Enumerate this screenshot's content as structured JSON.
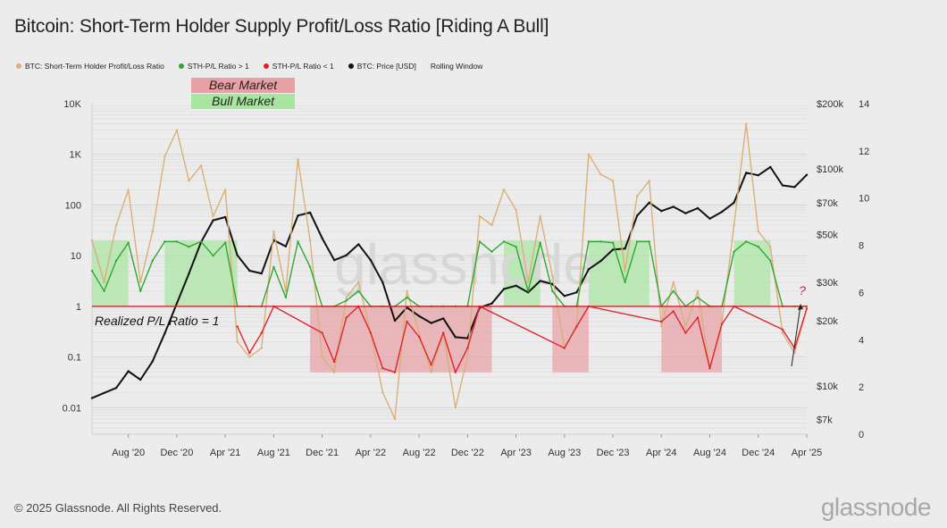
{
  "header": {
    "title": "Bitcoin: Short-Term Holder Supply Profit/Loss Ratio [Riding A Bull]"
  },
  "legend": [
    {
      "label": "BTC: Short-Term Holder Profit/Loss Ratio",
      "color": "#d9b07a",
      "dot": true
    },
    {
      "label": "STH-P/L Ratio > 1",
      "color": "#2fa82f",
      "dot": true
    },
    {
      "label": "STH-P/L Ratio < 1",
      "color": "#e0242f",
      "dot": true
    },
    {
      "label": "BTC: Price [USD]",
      "color": "#111111",
      "dot": true
    },
    {
      "label": "Rolling Window",
      "color": "",
      "dot": false
    }
  ],
  "footer": {
    "copyright": "© 2025 Glassnode. All Rights Reserved.",
    "brand": "glassnode"
  },
  "chart_data": {
    "type": "line",
    "watermark": "glassnode",
    "x_ticks": [
      "Aug '20",
      "Dec '20",
      "Apr '21",
      "Aug '21",
      "Dec '21",
      "Apr '22",
      "Aug '22",
      "Dec '22",
      "Apr '23",
      "Aug '23",
      "Dec '23",
      "Apr '24",
      "Aug '24",
      "Dec '24",
      "Apr '25"
    ],
    "x_range": [
      "2020-05",
      "2025-04"
    ],
    "y_left": {
      "scale": "log",
      "ticks": [
        "10K",
        "1K",
        "100",
        "10",
        "1",
        "0.1",
        "0.01"
      ],
      "range": [
        0.003,
        10000
      ]
    },
    "y_right_price": {
      "scale": "log",
      "ticks": [
        "$200k",
        "$100k",
        "$70k",
        "$50k",
        "$30k",
        "$20k",
        "$10k",
        "$7k"
      ],
      "range_usd": [
        6000,
        200000
      ]
    },
    "y_right_secondary": {
      "scale": "linear",
      "ticks": [
        "14",
        "12",
        "10",
        "8",
        "6",
        "4",
        "2",
        "0"
      ],
      "range": [
        0,
        14
      ]
    },
    "threshold": {
      "value": 1,
      "label": "Realized P/L Ratio = 1",
      "color": "#d0202a"
    },
    "regime_legend": [
      {
        "label": "Bear Market",
        "color": "#e8a0a4"
      },
      {
        "label": "Bull Market",
        "color": "#a8e6a0"
      }
    ],
    "bull_regions": [
      [
        "2020-05",
        "2020-08"
      ],
      [
        "2020-11",
        "2021-05"
      ],
      [
        "2023-03",
        "2023-06"
      ],
      [
        "2023-10",
        "2024-03"
      ],
      [
        "2024-10",
        "2025-01"
      ]
    ],
    "bear_regions": [
      [
        "2021-11",
        "2023-02"
      ],
      [
        "2023-07",
        "2023-10"
      ],
      [
        "2024-04",
        "2024-09"
      ]
    ],
    "annotation": {
      "label": "?",
      "color": "#d0206a"
    },
    "series": [
      {
        "name": "BTC: Price [USD]",
        "color": "#111111",
        "points": [
          [
            "2020-05",
            8800
          ],
          [
            "2020-06",
            9300
          ],
          [
            "2020-07",
            9800
          ],
          [
            "2020-08",
            11700
          ],
          [
            "2020-09",
            10700
          ],
          [
            "2020-10",
            13000
          ],
          [
            "2020-11",
            17500
          ],
          [
            "2020-12",
            24000
          ],
          [
            "2021-01",
            33000
          ],
          [
            "2021-02",
            46000
          ],
          [
            "2021-03",
            58000
          ],
          [
            "2021-04",
            60000
          ],
          [
            "2021-05",
            40000
          ],
          [
            "2021-06",
            34000
          ],
          [
            "2021-07",
            33000
          ],
          [
            "2021-08",
            47000
          ],
          [
            "2021-09",
            44000
          ],
          [
            "2021-10",
            61000
          ],
          [
            "2021-11",
            63000
          ],
          [
            "2021-12",
            48000
          ],
          [
            "2022-01",
            38000
          ],
          [
            "2022-02",
            40000
          ],
          [
            "2022-03",
            45000
          ],
          [
            "2022-04",
            38000
          ],
          [
            "2022-05",
            30000
          ],
          [
            "2022-06",
            20000
          ],
          [
            "2022-07",
            23000
          ],
          [
            "2022-08",
            21000
          ],
          [
            "2022-09",
            19500
          ],
          [
            "2022-10",
            20500
          ],
          [
            "2022-11",
            16800
          ],
          [
            "2022-12",
            16600
          ],
          [
            "2023-01",
            23000
          ],
          [
            "2023-02",
            24000
          ],
          [
            "2023-03",
            28000
          ],
          [
            "2023-04",
            29000
          ],
          [
            "2023-05",
            27000
          ],
          [
            "2023-06",
            30500
          ],
          [
            "2023-07",
            29500
          ],
          [
            "2023-08",
            26000
          ],
          [
            "2023-09",
            27000
          ],
          [
            "2023-10",
            34500
          ],
          [
            "2023-11",
            37700
          ],
          [
            "2023-12",
            42500
          ],
          [
            "2024-01",
            43000
          ],
          [
            "2024-02",
            61000
          ],
          [
            "2024-03",
            70000
          ],
          [
            "2024-04",
            64000
          ],
          [
            "2024-05",
            67000
          ],
          [
            "2024-06",
            62500
          ],
          [
            "2024-07",
            66000
          ],
          [
            "2024-08",
            59000
          ],
          [
            "2024-09",
            63500
          ],
          [
            "2024-10",
            70000
          ],
          [
            "2024-11",
            96000
          ],
          [
            "2024-12",
            93500
          ],
          [
            "2025-01",
            102000
          ],
          [
            "2025-02",
            84000
          ],
          [
            "2025-03",
            82500
          ],
          [
            "2025-04",
            94000
          ]
        ]
      },
      {
        "name": "BTC: Short-Term Holder Profit/Loss Ratio",
        "color": "#d9b07a",
        "points": [
          [
            "2020-05",
            20
          ],
          [
            "2020-06",
            3
          ],
          [
            "2020-07",
            40
          ],
          [
            "2020-08",
            200
          ],
          [
            "2020-09",
            3
          ],
          [
            "2020-10",
            30
          ],
          [
            "2020-11",
            900
          ],
          [
            "2020-12",
            3000
          ],
          [
            "2021-01",
            300
          ],
          [
            "2021-02",
            600
          ],
          [
            "2021-03",
            60
          ],
          [
            "2021-04",
            200
          ],
          [
            "2021-05",
            0.2
          ],
          [
            "2021-06",
            0.1
          ],
          [
            "2021-07",
            0.15
          ],
          [
            "2021-08",
            30
          ],
          [
            "2021-09",
            2
          ],
          [
            "2021-10",
            800
          ],
          [
            "2021-11",
            20
          ],
          [
            "2021-12",
            0.1
          ],
          [
            "2022-01",
            0.05
          ],
          [
            "2022-02",
            1.5
          ],
          [
            "2022-03",
            3
          ],
          [
            "2022-04",
            0.3
          ],
          [
            "2022-05",
            0.02
          ],
          [
            "2022-06",
            0.006
          ],
          [
            "2022-07",
            2
          ],
          [
            "2022-08",
            0.3
          ],
          [
            "2022-09",
            0.05
          ],
          [
            "2022-10",
            0.3
          ],
          [
            "2022-11",
            0.01
          ],
          [
            "2022-12",
            0.1
          ],
          [
            "2023-01",
            60
          ],
          [
            "2023-02",
            40
          ],
          [
            "2023-03",
            200
          ],
          [
            "2023-04",
            80
          ],
          [
            "2023-05",
            3
          ],
          [
            "2023-06",
            60
          ],
          [
            "2023-07",
            4
          ],
          [
            "2023-08",
            0.15
          ],
          [
            "2023-09",
            0.4
          ],
          [
            "2023-10",
            1000
          ],
          [
            "2023-11",
            400
          ],
          [
            "2023-12",
            300
          ],
          [
            "2024-01",
            5
          ],
          [
            "2024-02",
            150
          ],
          [
            "2024-03",
            300
          ],
          [
            "2024-04",
            0.4
          ],
          [
            "2024-05",
            3
          ],
          [
            "2024-06",
            0.4
          ],
          [
            "2024-07",
            2
          ],
          [
            "2024-08",
            0.06
          ],
          [
            "2024-09",
            0.5
          ],
          [
            "2024-10",
            40
          ],
          [
            "2024-11",
            4000
          ],
          [
            "2024-12",
            30
          ],
          [
            "2025-01",
            15
          ],
          [
            "2025-02",
            0.3
          ],
          [
            "2025-03",
            0.12
          ],
          [
            "2025-04",
            0.9
          ]
        ]
      },
      {
        "name": "STH-P/L Ratio > 1",
        "color": "#2fa82f",
        "points": [
          [
            "2020-05",
            5
          ],
          [
            "2020-06",
            2
          ],
          [
            "2020-07",
            8
          ],
          [
            "2020-08",
            18
          ],
          [
            "2020-09",
            2
          ],
          [
            "2020-10",
            8
          ],
          [
            "2020-11",
            19
          ],
          [
            "2020-12",
            19
          ],
          [
            "2021-01",
            15
          ],
          [
            "2021-02",
            19
          ],
          [
            "2021-03",
            10
          ],
          [
            "2021-04",
            18
          ],
          [
            "2021-05",
            1
          ],
          [
            "2021-06",
            1
          ],
          [
            "2021-07",
            1
          ],
          [
            "2021-08",
            6
          ],
          [
            "2021-09",
            1.5
          ],
          [
            "2021-10",
            19
          ],
          [
            "2021-11",
            6
          ],
          [
            "2021-12",
            1
          ],
          [
            "2022-01",
            1
          ],
          [
            "2022-02",
            1.3
          ],
          [
            "2022-03",
            2
          ],
          [
            "2022-04",
            1
          ],
          [
            "2022-05",
            1
          ],
          [
            "2022-06",
            1
          ],
          [
            "2022-07",
            1.5
          ],
          [
            "2022-08",
            1
          ],
          [
            "2022-09",
            1
          ],
          [
            "2022-10",
            1
          ],
          [
            "2022-11",
            1
          ],
          [
            "2022-12",
            1
          ],
          [
            "2023-01",
            19
          ],
          [
            "2023-02",
            12
          ],
          [
            "2023-03",
            19
          ],
          [
            "2023-04",
            15
          ],
          [
            "2023-05",
            2
          ],
          [
            "2023-06",
            18
          ],
          [
            "2023-07",
            2
          ],
          [
            "2023-08",
            1
          ],
          [
            "2023-09",
            1
          ],
          [
            "2023-10",
            19
          ],
          [
            "2023-11",
            19
          ],
          [
            "2023-12",
            18
          ],
          [
            "2024-01",
            3
          ],
          [
            "2024-02",
            19
          ],
          [
            "2024-03",
            19
          ],
          [
            "2024-04",
            1
          ],
          [
            "2024-05",
            2
          ],
          [
            "2024-06",
            1
          ],
          [
            "2024-07",
            1.5
          ],
          [
            "2024-08",
            1
          ],
          [
            "2024-09",
            1
          ],
          [
            "2024-10",
            12
          ],
          [
            "2024-11",
            19
          ],
          [
            "2024-12",
            15
          ],
          [
            "2025-01",
            8
          ],
          [
            "2025-02",
            1
          ],
          [
            "2025-03",
            1
          ],
          [
            "2025-04",
            1
          ]
        ]
      },
      {
        "name": "STH-P/L Ratio < 1",
        "color": "#e0242f",
        "points": [
          [
            "2021-05",
            0.4
          ],
          [
            "2021-06",
            0.12
          ],
          [
            "2021-07",
            0.3
          ],
          [
            "2021-08",
            1
          ],
          [
            "2021-12",
            0.3
          ],
          [
            "2022-01",
            0.08
          ],
          [
            "2022-02",
            0.6
          ],
          [
            "2022-03",
            1
          ],
          [
            "2022-04",
            0.3
          ],
          [
            "2022-05",
            0.06
          ],
          [
            "2022-06",
            0.05
          ],
          [
            "2022-07",
            0.5
          ],
          [
            "2022-08",
            0.25
          ],
          [
            "2022-09",
            0.07
          ],
          [
            "2022-10",
            0.3
          ],
          [
            "2022-11",
            0.05
          ],
          [
            "2022-12",
            0.15
          ],
          [
            "2023-01",
            1
          ],
          [
            "2023-08",
            0.15
          ],
          [
            "2023-09",
            0.4
          ],
          [
            "2023-10",
            1
          ],
          [
            "2024-04",
            0.5
          ],
          [
            "2024-05",
            0.8
          ],
          [
            "2024-06",
            0.3
          ],
          [
            "2024-07",
            0.6
          ],
          [
            "2024-08",
            0.06
          ],
          [
            "2024-09",
            0.45
          ],
          [
            "2024-10",
            1
          ],
          [
            "2025-02",
            0.35
          ],
          [
            "2025-03",
            0.15
          ],
          [
            "2025-04",
            0.9
          ]
        ]
      }
    ]
  }
}
